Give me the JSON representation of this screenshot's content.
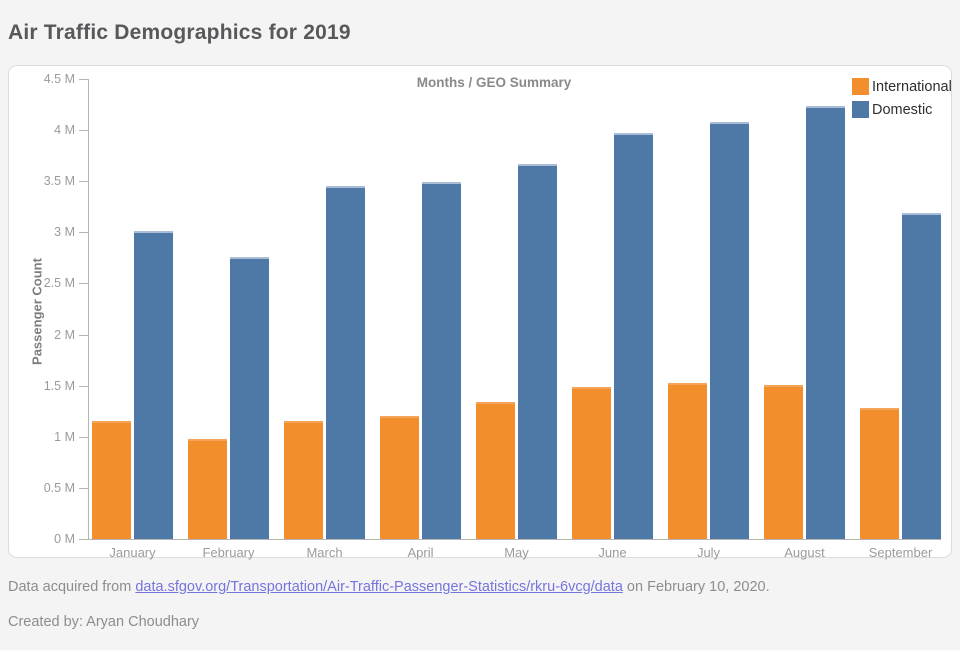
{
  "page": {
    "title": "Air Traffic Demographics for 2019"
  },
  "footer": {
    "prefix": "Data acquired from ",
    "link_text": "data.sfgov.org/Transportation/Air-Traffic-Passenger-Statistics/rkru-6vcg/data",
    "suffix": " on February 10, 2020.",
    "credit": "Created by: Aryan Choudhary"
  },
  "chart_data": {
    "type": "bar",
    "title": "Months / GEO Summary",
    "ylabel": "Passenger Count",
    "xlabel": "",
    "unit": "millions of passengers",
    "categories": [
      "January",
      "February",
      "March",
      "April",
      "May",
      "June",
      "July",
      "August",
      "September"
    ],
    "series": [
      {
        "name": "International",
        "color": "#f28e2c",
        "top_edge_color": "#f5a55b",
        "values_millions": [
          1.15,
          0.98,
          1.15,
          1.2,
          1.34,
          1.49,
          1.53,
          1.51,
          1.28
        ]
      },
      {
        "name": "Domestic",
        "color": "#4e79a7",
        "top_edge_color": "#a9bdd7",
        "values_millions": [
          3.01,
          2.76,
          3.45,
          3.49,
          3.67,
          3.97,
          4.08,
          4.24,
          3.19
        ]
      }
    ],
    "ylim_millions": [
      0,
      4.5
    ],
    "ytick_labels": [
      "0 M",
      "0.5 M",
      "1 M",
      "1.5 M",
      "2 M",
      "2.5 M",
      "3 M",
      "3.5 M",
      "4 M",
      "4.5 M"
    ],
    "grid": false,
    "legend_position": "top-right"
  }
}
